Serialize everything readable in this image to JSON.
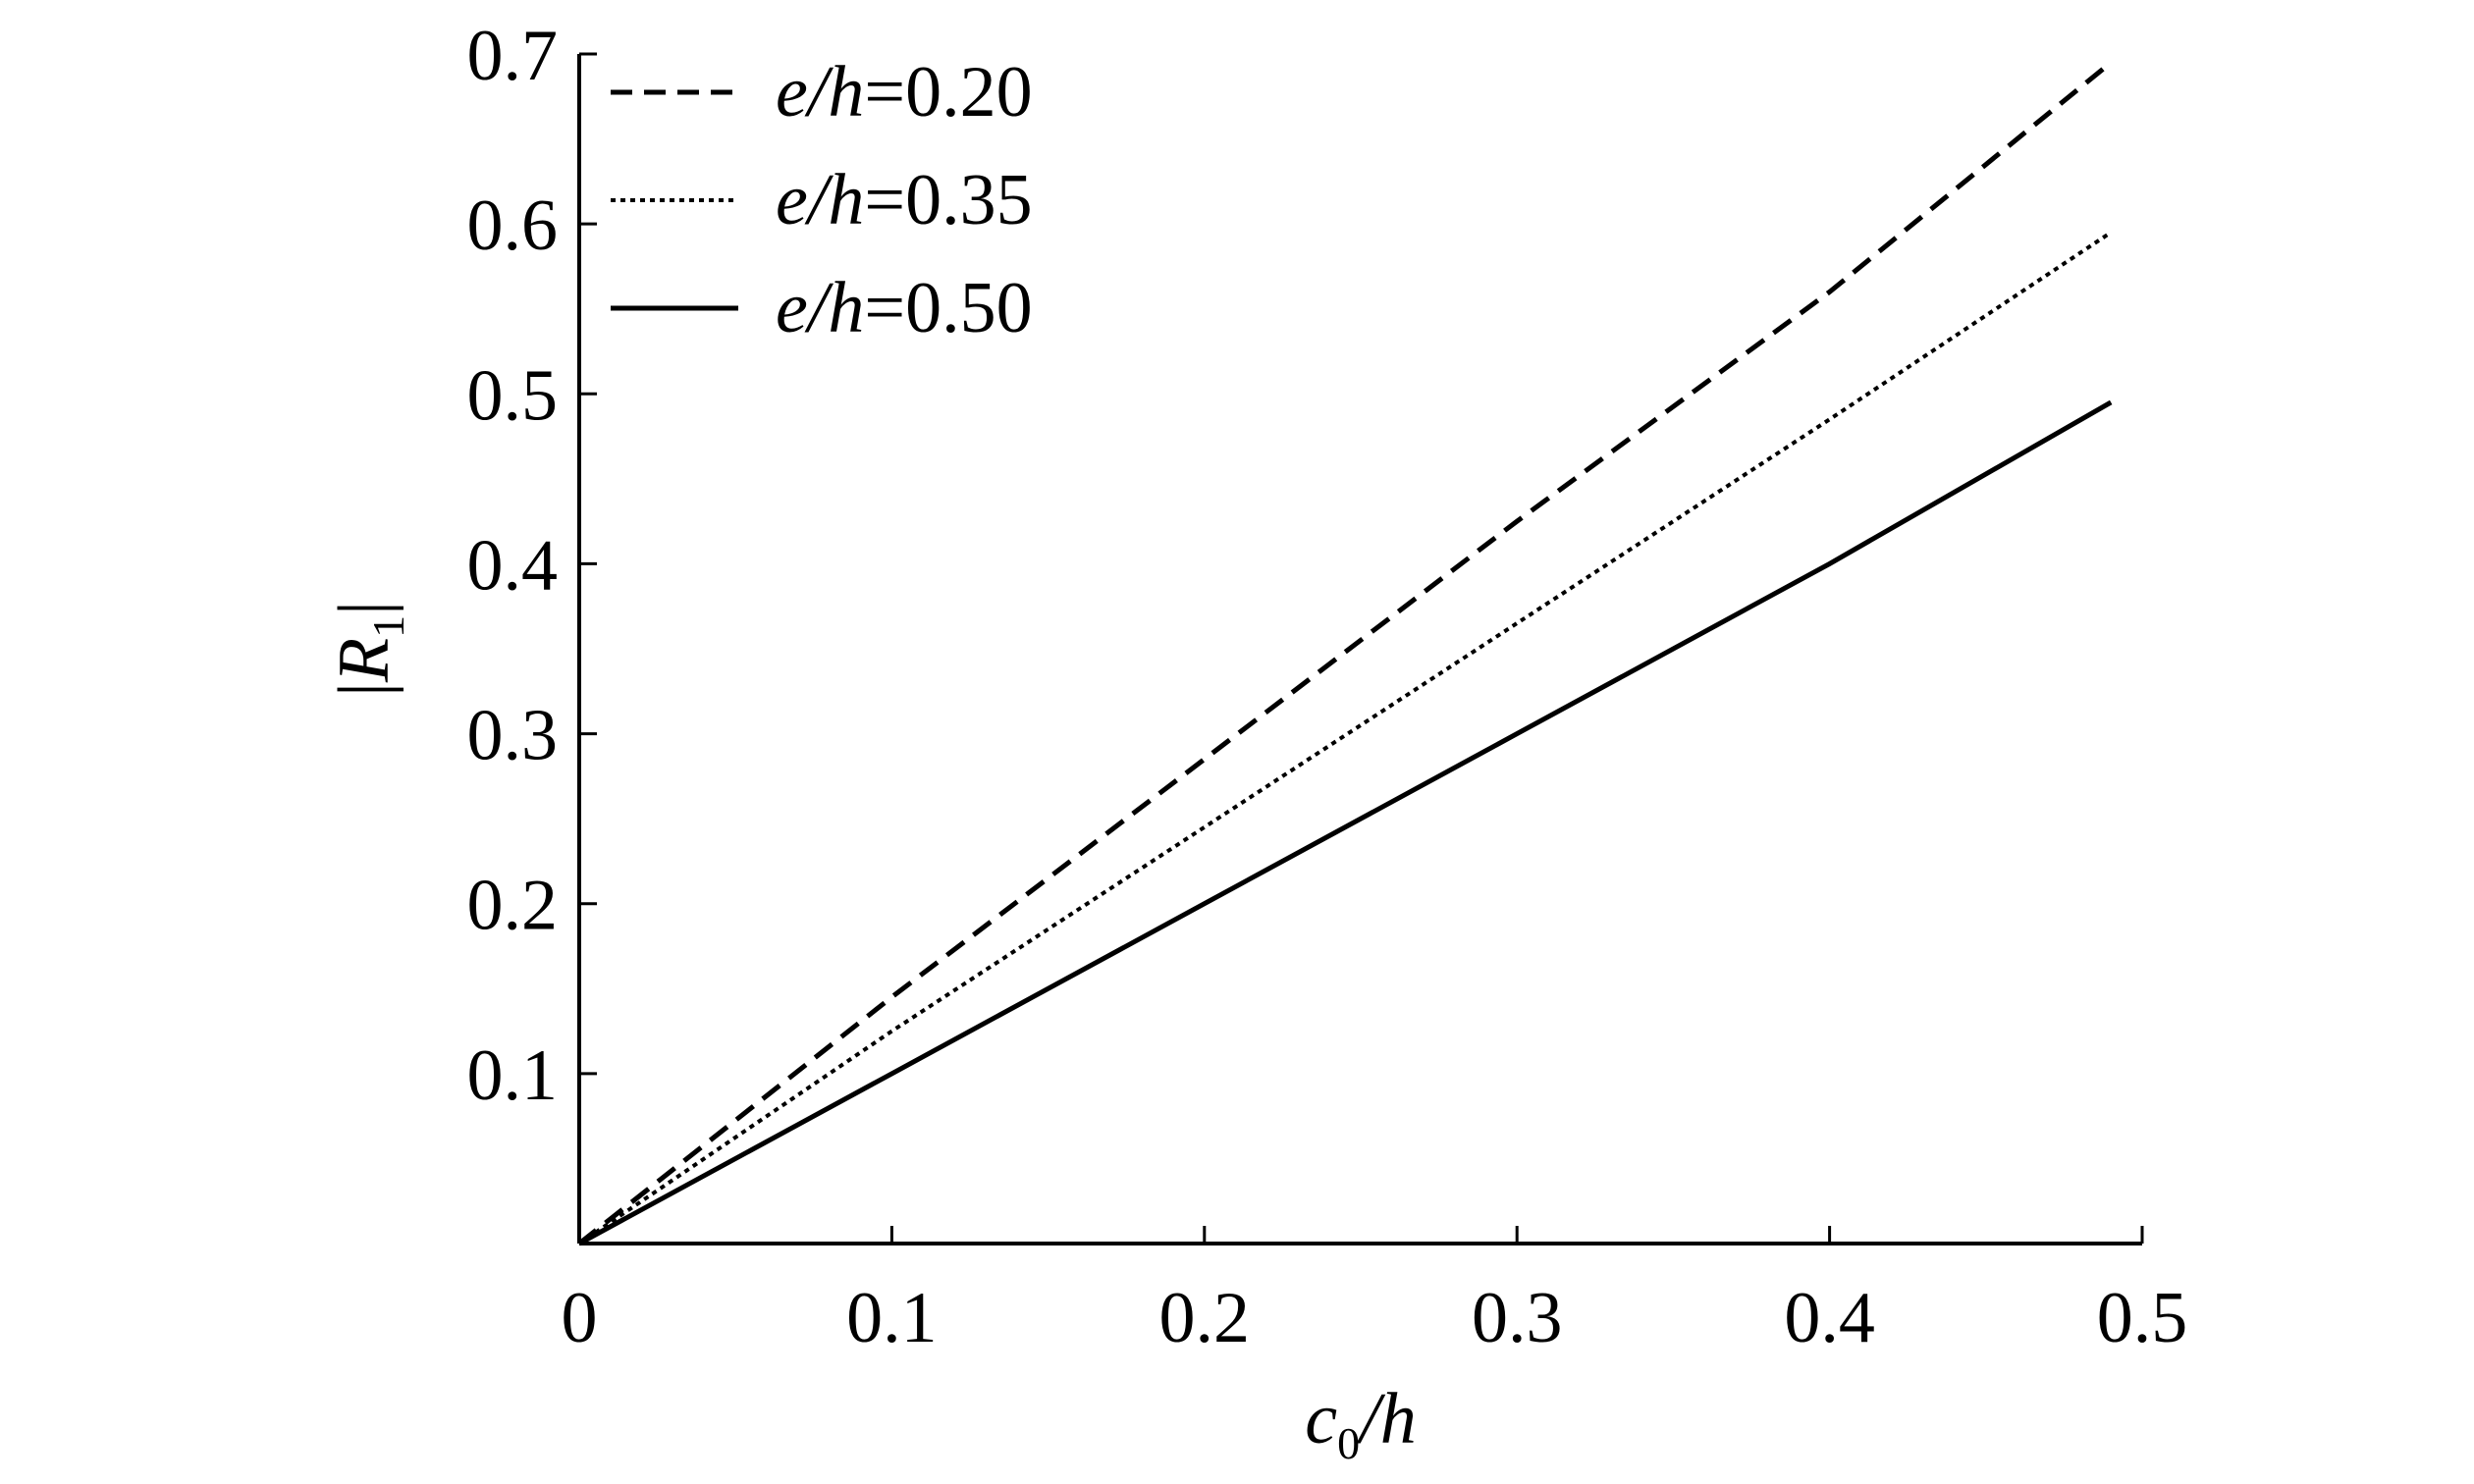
{
  "chart_data": {
    "type": "line",
    "title": "",
    "xlabel": {
      "var": "c",
      "sub": "0",
      "rest": "/h"
    },
    "ylabel": {
      "open": "|",
      "var": "R",
      "sub": "1",
      "close": "|"
    },
    "xlim": [
      0,
      0.5
    ],
    "ylim": [
      0,
      0.7
    ],
    "xticks": [
      "0",
      "0.1",
      "0.2",
      "0.3",
      "0.4",
      "0.5"
    ],
    "yticks": [
      "0.1",
      "0.2",
      "0.3",
      "0.4",
      "0.5",
      "0.6",
      "0.7"
    ],
    "grid": false,
    "legend_position": "top-left",
    "series": [
      {
        "name": "e/h=0.20",
        "name_var": "e/h",
        "name_value": "=0.20",
        "style": "dashed",
        "x": [
          0,
          0.1,
          0.2,
          0.3,
          0.4,
          0.49
        ],
        "y": [
          0,
          0.145,
          0.285,
          0.425,
          0.56,
          0.695
        ]
      },
      {
        "name": "e/h=0.35",
        "name_var": "e/h",
        "name_value": "=0.35",
        "style": "dotted",
        "x": [
          0,
          0.1,
          0.2,
          0.3,
          0.4,
          0.49
        ],
        "y": [
          0,
          0.125,
          0.245,
          0.365,
          0.485,
          0.595
        ]
      },
      {
        "name": "e/h=0.50",
        "name_var": "e/h",
        "name_value": "=0.50",
        "style": "solid",
        "x": [
          0,
          0.1,
          0.2,
          0.3,
          0.4,
          0.49
        ],
        "y": [
          0,
          0.1,
          0.2,
          0.3,
          0.4,
          0.495
        ]
      }
    ]
  }
}
